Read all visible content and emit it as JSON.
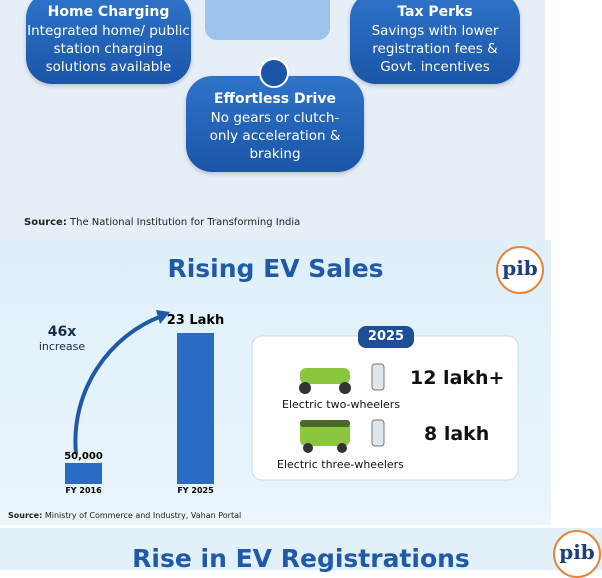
{
  "top": {
    "cards": [
      {
        "title": "Home Charging",
        "text": "Integrated home/ public station charging solutions available"
      },
      {
        "title": "Tax Perks",
        "text": "Savings with lower registration fees & Govt. incentives"
      },
      {
        "title": "Effortless Drive",
        "text": "No gears or clutch-only acceleration & braking"
      }
    ],
    "source_label": "Source:",
    "source": "The National Institution for Transforming India"
  },
  "sales": {
    "title": "Rising EV Sales",
    "growth": "46x",
    "growth_note": "increase",
    "bars": [
      {
        "value": "50,000",
        "label": "FY 2016"
      },
      {
        "value": "23 Lakh",
        "label": "FY 2025"
      }
    ],
    "year": "2025",
    "items": [
      {
        "value": "12 lakh+",
        "label": "Electric two-wheelers"
      },
      {
        "value": "8 lakh",
        "label": "Electric three-wheelers"
      }
    ],
    "source_label": "Source:",
    "source": "Ministry of Commerce and Industry, Vahan Portal"
  },
  "registrations": {
    "title": "Rise in EV Registrations"
  },
  "logo": "pib"
}
